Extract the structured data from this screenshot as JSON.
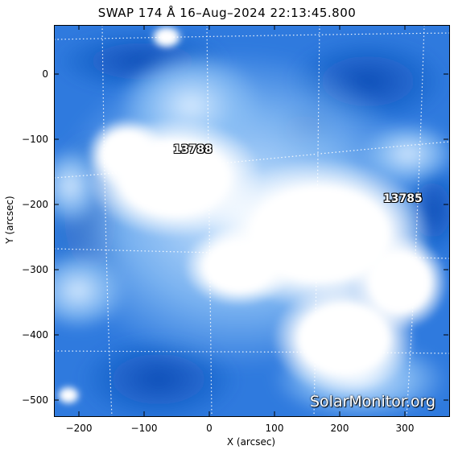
{
  "title": "SWAP 174 Å 16–Aug–2024 22:13:45.800",
  "x_axis": {
    "label": "X (arcsec)",
    "ticks": [
      "−200",
      "−100",
      "0",
      "100",
      "200",
      "300"
    ]
  },
  "y_axis": {
    "label": "Y (arcsec)",
    "ticks": [
      "0",
      "−100",
      "−200",
      "−300",
      "−400",
      "−500"
    ]
  },
  "active_regions": [
    "13788",
    "13785"
  ],
  "watermark": "SolarMonitor.org",
  "colors": {
    "coronal_bright": "#ffffff",
    "coronal_mid": "#5aa0f0",
    "coronal_dark": "#0f4fb8"
  }
}
